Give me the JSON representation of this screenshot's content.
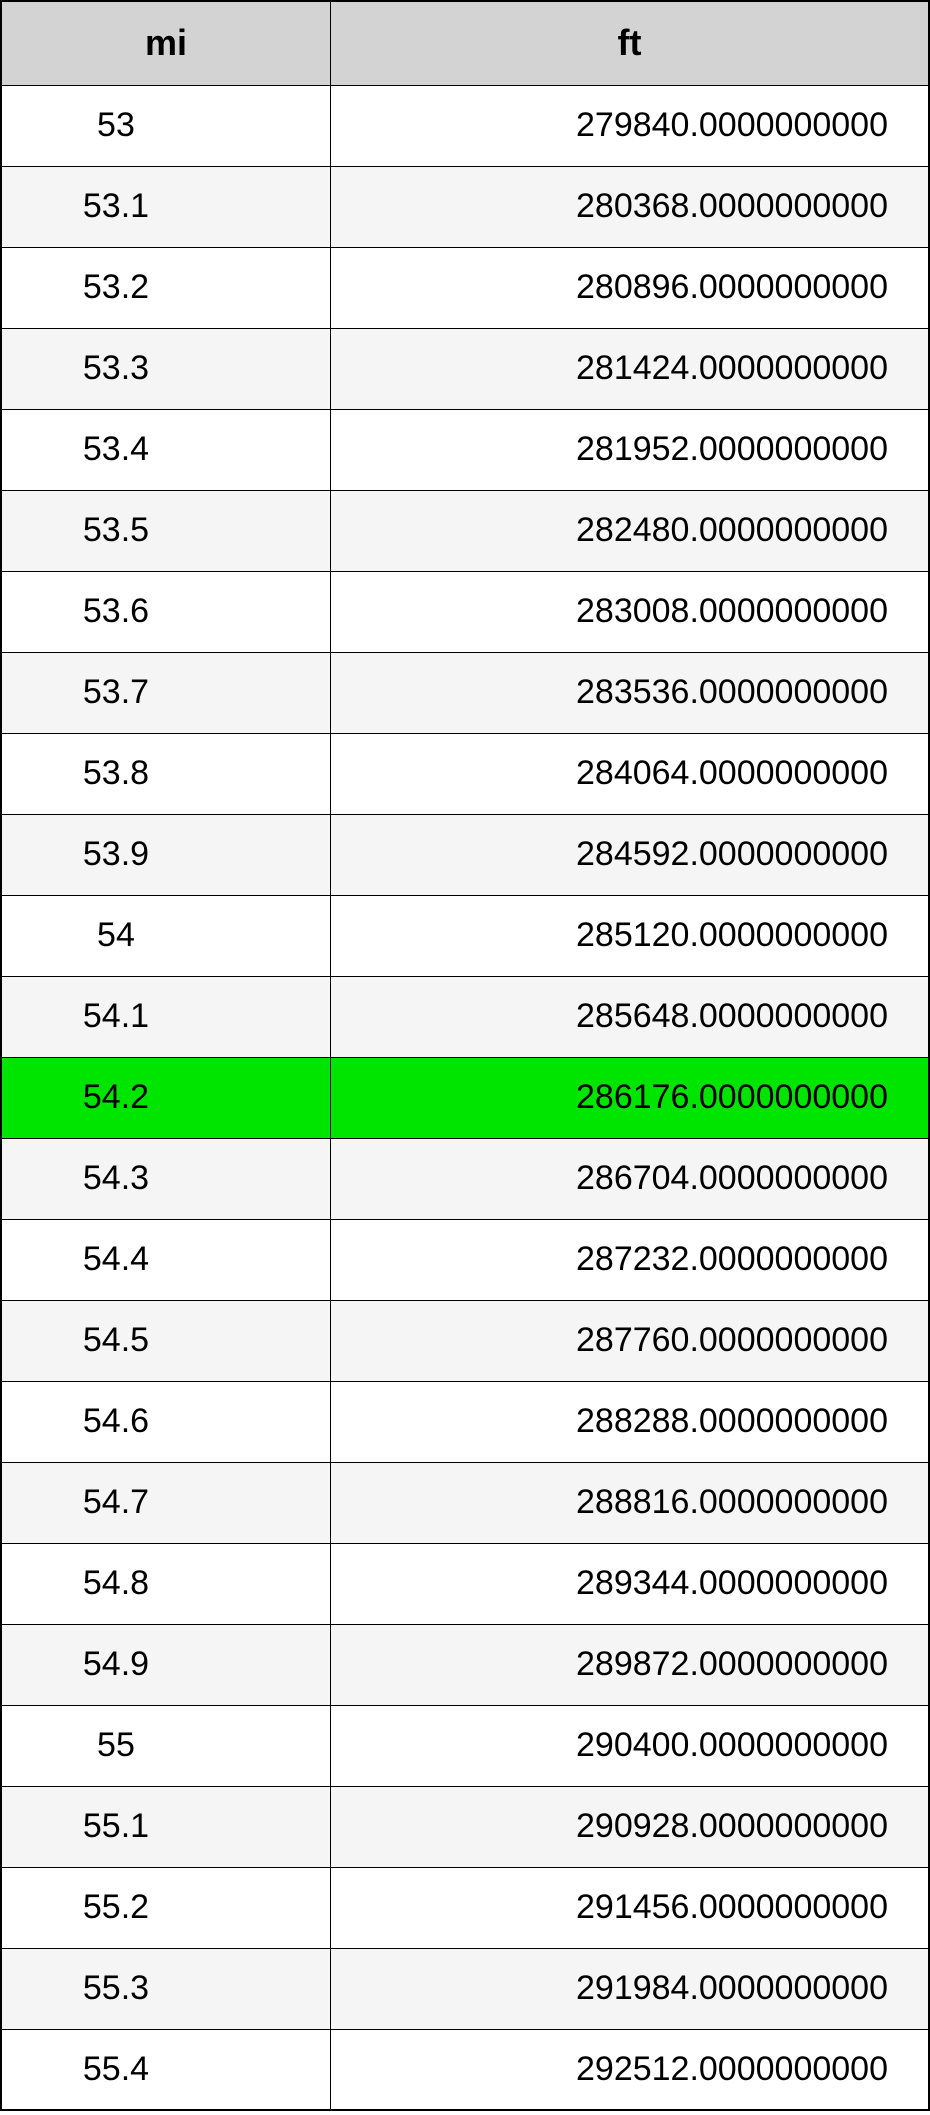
{
  "table": {
    "columns": [
      "mi",
      "ft"
    ],
    "header_bg": "#d3d3d3",
    "border_color": "#000000",
    "row_bg_even": "#ffffff",
    "row_bg_odd": "#f5f5f5",
    "highlight_bg": "#00e500",
    "header_fontsize": 36,
    "cell_fontsize": 34,
    "highlighted_index": 12,
    "rows": [
      {
        "mi": "53",
        "ft": "279840.0000000000"
      },
      {
        "mi": "53.1",
        "ft": "280368.0000000000"
      },
      {
        "mi": "53.2",
        "ft": "280896.0000000000"
      },
      {
        "mi": "53.3",
        "ft": "281424.0000000000"
      },
      {
        "mi": "53.4",
        "ft": "281952.0000000000"
      },
      {
        "mi": "53.5",
        "ft": "282480.0000000000"
      },
      {
        "mi": "53.6",
        "ft": "283008.0000000000"
      },
      {
        "mi": "53.7",
        "ft": "283536.0000000000"
      },
      {
        "mi": "53.8",
        "ft": "284064.0000000000"
      },
      {
        "mi": "53.9",
        "ft": "284592.0000000000"
      },
      {
        "mi": "54",
        "ft": "285120.0000000000"
      },
      {
        "mi": "54.1",
        "ft": "285648.0000000000"
      },
      {
        "mi": "54.2",
        "ft": "286176.0000000000"
      },
      {
        "mi": "54.3",
        "ft": "286704.0000000000"
      },
      {
        "mi": "54.4",
        "ft": "287232.0000000000"
      },
      {
        "mi": "54.5",
        "ft": "287760.0000000000"
      },
      {
        "mi": "54.6",
        "ft": "288288.0000000000"
      },
      {
        "mi": "54.7",
        "ft": "288816.0000000000"
      },
      {
        "mi": "54.8",
        "ft": "289344.0000000000"
      },
      {
        "mi": "54.9",
        "ft": "289872.0000000000"
      },
      {
        "mi": "55",
        "ft": "290400.0000000000"
      },
      {
        "mi": "55.1",
        "ft": "290928.0000000000"
      },
      {
        "mi": "55.2",
        "ft": "291456.0000000000"
      },
      {
        "mi": "55.3",
        "ft": "291984.0000000000"
      },
      {
        "mi": "55.4",
        "ft": "292512.0000000000"
      }
    ]
  }
}
